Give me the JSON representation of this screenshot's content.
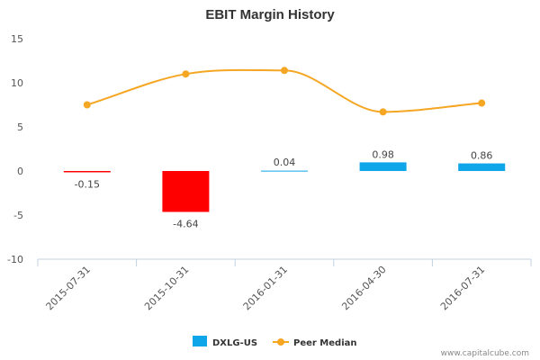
{
  "chart_data": {
    "type": "bar",
    "title": "EBIT Margin History",
    "xlabel": "",
    "ylabel": "",
    "categories": [
      "2015-07-31",
      "2015-10-31",
      "2016-01-31",
      "2016-04-30",
      "2016-07-31"
    ],
    "ylim": [
      -10,
      15
    ],
    "yticks": [
      -10,
      -5,
      0,
      5,
      10,
      15
    ],
    "grid": false,
    "legend_position": "bottom-center",
    "series": [
      {
        "name": "DXLG-US",
        "type": "bar",
        "values": [
          -0.15,
          -4.64,
          0.04,
          0.98,
          0.86
        ],
        "data_labels": [
          "-0.15",
          "-4.64",
          "0.04",
          "0.98",
          "0.86"
        ],
        "color": "#0ea5e9",
        "negative_color": "#ff0000"
      },
      {
        "name": "Peer Median",
        "type": "line",
        "values": [
          7.5,
          11.0,
          11.4,
          6.7,
          7.7
        ],
        "color": "#f5a623"
      }
    ]
  },
  "watermark": "www.capitalcube.com"
}
